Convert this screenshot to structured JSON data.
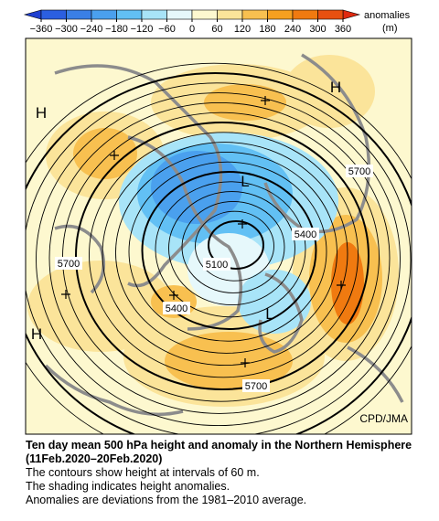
{
  "colorbar": {
    "ticks": [
      {
        "value": -360,
        "label": "−360"
      },
      {
        "value": -300,
        "label": "−300"
      },
      {
        "value": -240,
        "label": "−240"
      },
      {
        "value": -180,
        "label": "−180"
      },
      {
        "value": -120,
        "label": "−120"
      },
      {
        "value": -60,
        "label": "−60"
      },
      0,
      60,
      120,
      180,
      240,
      300,
      360
    ],
    "colors": [
      "#2040d0",
      "#2b5fe0",
      "#3a7fe6",
      "#4aa0ee",
      "#62c0f4",
      "#a8e4f8",
      "#e6f8fb",
      "#fdf8cf",
      "#fbe49a",
      "#f8c050",
      "#f5a020",
      "#f07a10",
      "#e85010",
      "#e02a10"
    ],
    "title": "anomalies",
    "unit": "(m)"
  },
  "map": {
    "highs": [
      "H",
      "H",
      "H"
    ],
    "lows": [
      "L",
      "L"
    ],
    "contour_labels": [
      5700,
      5700,
      5700,
      5400,
      5400,
      5100
    ],
    "credit": "CPD/JMA"
  },
  "caption": {
    "title": "Ten day mean 500 hPa height and anomaly in the Northern Hemisphere (11Feb.2020–20Feb.2020)",
    "lines": [
      "The contours show height at intervals of 60 m.",
      "The shading indicates height anomalies.",
      "Anomalies are deviations from the 1981–2010 average."
    ]
  }
}
